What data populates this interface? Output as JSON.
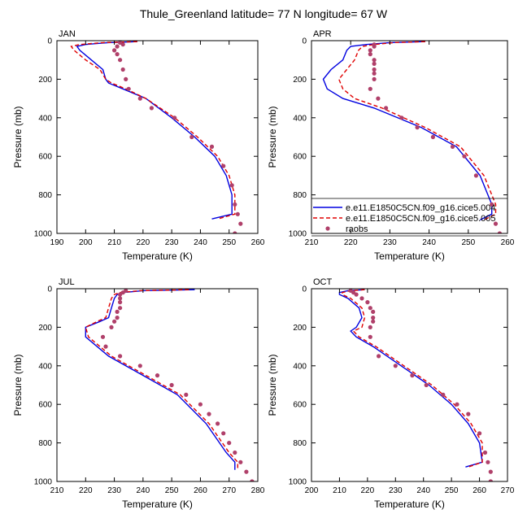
{
  "title": "Thule_Greenland  latitude= 77 N longitude= 67 W",
  "colors": {
    "series1": "#0000e0",
    "series2": "#e00000",
    "raobs": "#b0406a"
  },
  "legend": {
    "entries": [
      "e.e11.E1850C5CN.f09_g16.cice5.004",
      "e.e11.E1850C5CN.f09_g16.cice5.005",
      "raobs"
    ]
  },
  "chart_data": [
    {
      "type": "line",
      "month": "JAN",
      "xlabel": "Temperature (K)",
      "ylabel": "Pressure (mb)",
      "xlim": [
        190,
        260
      ],
      "ylim": [
        1000,
        0
      ],
      "xticks": [
        190,
        200,
        210,
        220,
        230,
        240,
        250,
        260
      ],
      "yticks": [
        0,
        200,
        400,
        600,
        800,
        1000
      ],
      "series": [
        {
          "name": "e.e11.E1850C5CN.f09_g16.cice5.004",
          "x": [
            218,
            208,
            200,
            197,
            198,
            202,
            206,
            207,
            208,
            213,
            221,
            230,
            238,
            245,
            249,
            251,
            251,
            244
          ],
          "y": [
            5,
            10,
            20,
            30,
            50,
            100,
            150,
            200,
            220,
            250,
            300,
            400,
            500,
            600,
            700,
            800,
            900,
            925
          ]
        },
        {
          "name": "e.e11.E1850C5CN.f09_g16.cice5.005",
          "x": [
            218,
            206,
            198,
            195,
            196,
            200,
            205,
            207,
            209,
            214,
            221,
            231,
            239,
            246,
            250,
            252,
            252,
            246
          ],
          "y": [
            5,
            10,
            20,
            30,
            50,
            100,
            150,
            200,
            220,
            250,
            300,
            400,
            500,
            600,
            700,
            800,
            900,
            925
          ]
        },
        {
          "name": "raobs",
          "x": [
            212,
            213,
            211,
            210,
            211,
            212,
            213,
            214,
            215,
            219,
            223,
            231,
            237,
            244,
            248,
            251,
            252,
            253,
            254,
            252
          ],
          "y": [
            10,
            20,
            30,
            50,
            70,
            100,
            150,
            200,
            250,
            300,
            350,
            400,
            500,
            550,
            650,
            750,
            850,
            900,
            950,
            1000
          ]
        }
      ]
    },
    {
      "type": "line",
      "month": "APR",
      "xlabel": "Temperature (K)",
      "ylabel": "Pressure (mb)",
      "xlim": [
        210,
        260
      ],
      "ylim": [
        1000,
        0
      ],
      "xticks": [
        210,
        220,
        230,
        240,
        250,
        260
      ],
      "yticks": [
        0,
        200,
        400,
        600,
        800,
        1000
      ],
      "series": [
        {
          "name": "e.e11.E1850C5CN.f09_g16.cice5.004",
          "x": [
            239,
            230,
            224,
            220,
            219,
            218,
            215,
            213,
            214,
            218,
            226,
            238,
            247,
            253,
            256,
            256,
            253
          ],
          "y": [
            5,
            10,
            20,
            30,
            50,
            100,
            150,
            200,
            250,
            300,
            350,
            450,
            550,
            700,
            850,
            900,
            930
          ]
        },
        {
          "name": "e.e11.E1850C5CN.f09_g16.cice5.005",
          "x": [
            239,
            231,
            226,
            223,
            222,
            221,
            219,
            217,
            218,
            221,
            228,
            239,
            248,
            254,
            257,
            257,
            254
          ],
          "y": [
            5,
            10,
            20,
            30,
            50,
            100,
            150,
            200,
            250,
            300,
            350,
            450,
            550,
            700,
            850,
            900,
            930
          ]
        },
        {
          "name": "raobs",
          "x": [
            226,
            226,
            225,
            225,
            226,
            226,
            226,
            226,
            226,
            225,
            227,
            229,
            233,
            237,
            241,
            246,
            249,
            252,
            256,
            257,
            258
          ],
          "y": [
            20,
            30,
            50,
            70,
            100,
            120,
            150,
            170,
            200,
            250,
            300,
            350,
            400,
            450,
            500,
            550,
            600,
            700,
            850,
            950,
            1000
          ]
        }
      ]
    },
    {
      "type": "line",
      "month": "JUL",
      "xlabel": "Temperature (K)",
      "ylabel": "Pressure (mb)",
      "xlim": [
        210,
        280
      ],
      "ylim": [
        1000,
        0
      ],
      "xticks": [
        210,
        220,
        230,
        240,
        250,
        260,
        270,
        280
      ],
      "yticks": [
        0,
        200,
        400,
        600,
        800,
        1000
      ],
      "series": [
        {
          "name": "e.e11.E1850C5CN.f09_g16.cice5.004",
          "x": [
            258,
            240,
            233,
            231,
            230,
            229,
            228,
            225,
            220,
            220,
            228,
            240,
            252,
            262,
            269,
            272,
            272
          ],
          "y": [
            5,
            10,
            20,
            30,
            50,
            100,
            150,
            170,
            200,
            250,
            350,
            450,
            550,
            700,
            850,
            900,
            940
          ]
        },
        {
          "name": "e.e11.E1850C5CN.f09_g16.cice5.005",
          "x": [
            256,
            239,
            232,
            230,
            229,
            228,
            227,
            224,
            220,
            221,
            229,
            241,
            253,
            263,
            270,
            273,
            273
          ],
          "y": [
            5,
            10,
            20,
            30,
            50,
            100,
            150,
            170,
            200,
            250,
            350,
            450,
            550,
            700,
            850,
            900,
            940
          ]
        },
        {
          "name": "raobs",
          "x": [
            234,
            233,
            232,
            232,
            232,
            232,
            231,
            231,
            230,
            229,
            226,
            227,
            232,
            239,
            245,
            250,
            255,
            260,
            263,
            266,
            268,
            270,
            272,
            274,
            276,
            278,
            278
          ],
          "y": [
            10,
            20,
            30,
            50,
            70,
            100,
            120,
            150,
            170,
            200,
            250,
            300,
            350,
            400,
            450,
            500,
            550,
            600,
            650,
            700,
            750,
            800,
            850,
            900,
            950,
            1000,
            1000
          ]
        }
      ]
    },
    {
      "type": "line",
      "month": "OCT",
      "xlabel": "Temperature (K)",
      "ylabel": "Pressure (mb)",
      "xlim": [
        200,
        270
      ],
      "ylim": [
        1000,
        0
      ],
      "xticks": [
        200,
        210,
        220,
        230,
        240,
        250,
        260,
        270
      ],
      "yticks": [
        0,
        200,
        400,
        600,
        800,
        1000
      ],
      "series": [
        {
          "name": "e.e11.E1850C5CN.f09_g16.cice5.004",
          "x": [
            219,
            213,
            210,
            210,
            213,
            217,
            218,
            216,
            214,
            216,
            222,
            232,
            242,
            250,
            256,
            260,
            261,
            255
          ],
          "y": [
            5,
            10,
            20,
            30,
            50,
            100,
            150,
            200,
            220,
            250,
            300,
            400,
            500,
            600,
            700,
            800,
            900,
            925
          ]
        },
        {
          "name": "e.e11.E1850C5CN.f09_g16.cice5.005",
          "x": [
            219,
            214,
            211,
            211,
            214,
            218,
            219,
            218,
            215,
            217,
            223,
            233,
            243,
            251,
            257,
            261,
            261,
            256
          ],
          "y": [
            5,
            10,
            20,
            30,
            50,
            100,
            150,
            200,
            220,
            250,
            300,
            400,
            500,
            600,
            700,
            800,
            900,
            925
          ]
        },
        {
          "name": "raobs",
          "x": [
            214,
            215,
            216,
            218,
            220,
            221,
            222,
            222,
            222,
            221,
            221,
            224,
            230,
            236,
            241,
            247,
            252,
            256,
            260,
            262,
            263,
            264,
            264,
            264
          ],
          "y": [
            10,
            20,
            30,
            50,
            70,
            100,
            120,
            150,
            170,
            200,
            250,
            350,
            400,
            450,
            500,
            550,
            600,
            650,
            750,
            850,
            900,
            950,
            1000,
            1000
          ]
        }
      ]
    }
  ]
}
